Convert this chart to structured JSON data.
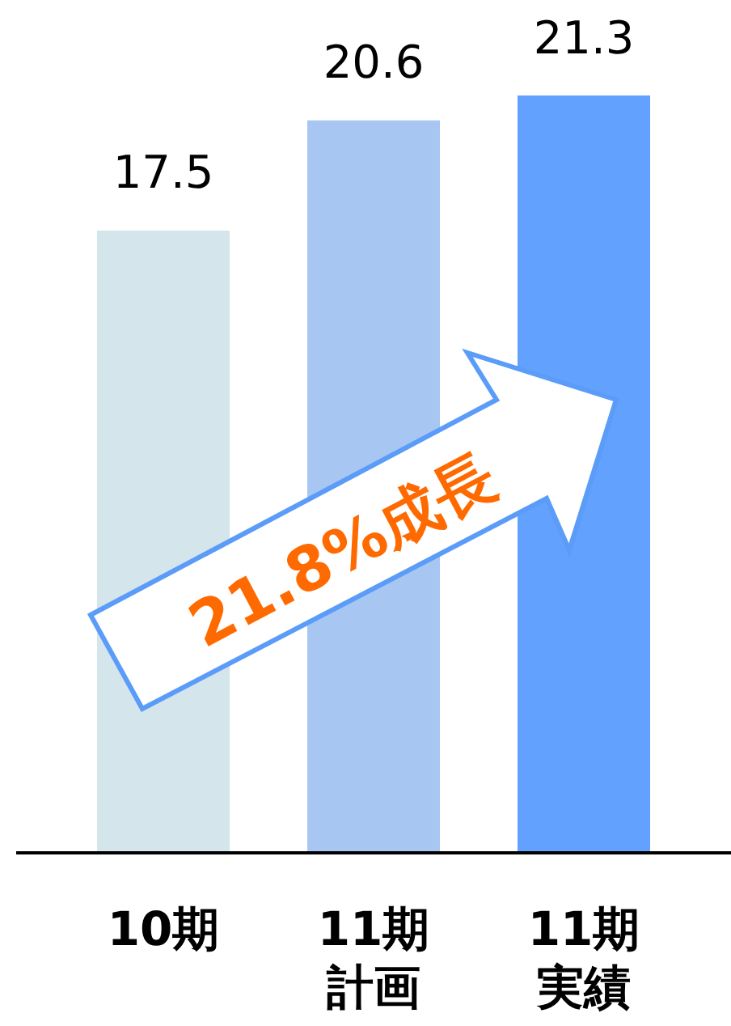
{
  "chart_data": {
    "type": "bar",
    "categories": [
      "10期",
      "11期計画",
      "11期実績"
    ],
    "values": [
      17.5,
      20.6,
      21.3
    ],
    "colors": [
      "#d5e5ec",
      "#a7c7f2",
      "#62a1fd"
    ],
    "data_labels": true,
    "annotations": [
      "21.8%成長"
    ]
  }
}
